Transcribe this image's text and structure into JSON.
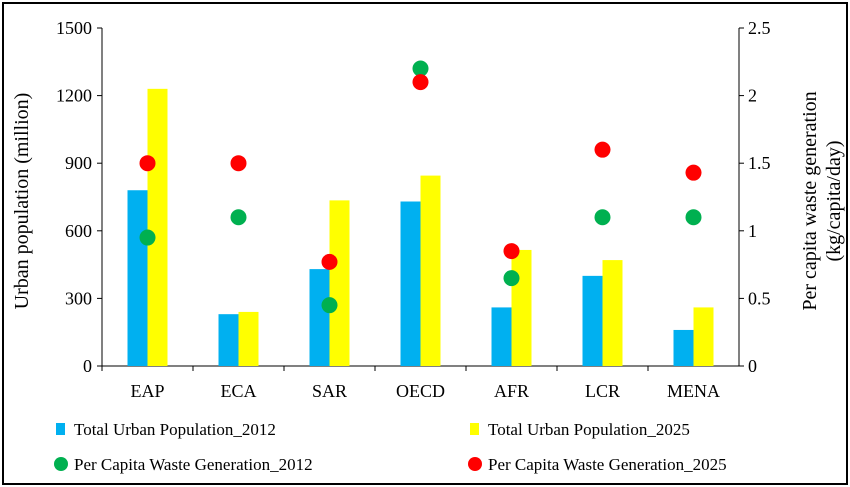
{
  "chart_data": {
    "type": "bar",
    "categories": [
      "EAP",
      "ECA",
      "SAR",
      "OECD",
      "AFR",
      "LCR",
      "MENA"
    ],
    "y_left": {
      "label": "Urban population (million)",
      "lim": [
        0,
        1500
      ],
      "ticks": [
        "0",
        "300",
        "600",
        "900",
        "1200",
        "1500"
      ]
    },
    "y_right": {
      "label_line1": "Per capita waste generation",
      "label_line2": "(kg/capita/day)",
      "lim": [
        0,
        2.5
      ],
      "ticks": [
        "0",
        "0.5",
        "1",
        "1.5",
        "2",
        "2.5"
      ]
    },
    "bar_series": [
      {
        "name": "Total Urban Population_2012",
        "color": "#00B0F0",
        "values": [
          780,
          230,
          430,
          730,
          260,
          400,
          160
        ]
      },
      {
        "name": "Total Urban Population_2025",
        "color": "#FFFF00",
        "values": [
          1230,
          240,
          735,
          845,
          515,
          470,
          260
        ]
      }
    ],
    "point_series": [
      {
        "name": "Per Capita Waste Generation_2012",
        "color": "#00B050",
        "axis": "right",
        "values": [
          0.95,
          1.1,
          0.45,
          2.2,
          0.65,
          1.1,
          1.1
        ]
      },
      {
        "name": "Per Capita Waste Generation_2025",
        "color": "#FF0000",
        "axis": "right",
        "values": [
          1.5,
          1.5,
          0.77,
          2.1,
          0.85,
          1.6,
          1.43
        ]
      }
    ],
    "grid": false,
    "legend_position": "bottom"
  }
}
